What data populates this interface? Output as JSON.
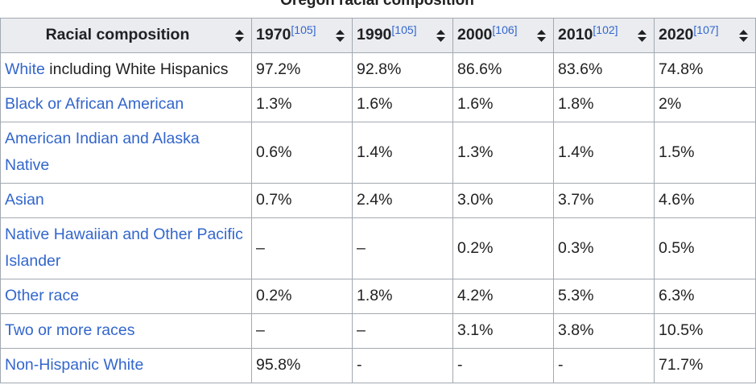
{
  "caption": "Oregon racial composition",
  "header": {
    "label": "Racial composition",
    "columns": [
      {
        "year": "1970",
        "ref": "[105]"
      },
      {
        "year": "1990",
        "ref": "[105]"
      },
      {
        "year": "2000",
        "ref": "[106]"
      },
      {
        "year": "2010",
        "ref": "[102]"
      },
      {
        "year": "2020",
        "ref": "[107]"
      }
    ]
  },
  "rows": [
    {
      "link": "White",
      "text": "including White Hispanics",
      "values": [
        "97.2%",
        "92.8%",
        "86.6%",
        "83.6%",
        "74.8%"
      ]
    },
    {
      "link": "Black or African American",
      "values": [
        "1.3%",
        "1.6%",
        "1.6%",
        "1.8%",
        "2%"
      ]
    },
    {
      "link": "American Indian and Alaska Native",
      "values": [
        "0.6%",
        "1.4%",
        "1.3%",
        "1.4%",
        "1.5%"
      ]
    },
    {
      "link": "Asian",
      "values": [
        "0.7%",
        "2.4%",
        "3.0%",
        "3.7%",
        "4.6%"
      ]
    },
    {
      "link": "Native Hawaiian and Other Pacific Islander",
      "values": [
        "–",
        "–",
        "0.2%",
        "0.3%",
        "0.5%"
      ]
    },
    {
      "link": "Other race",
      "values": [
        "0.2%",
        "1.8%",
        "4.2%",
        "5.3%",
        "6.3%"
      ]
    },
    {
      "link": "Two or more races",
      "values": [
        "–",
        "–",
        "3.1%",
        "3.8%",
        "10.5%"
      ]
    },
    {
      "link": "Non-Hispanic White",
      "values": [
        "95.8%",
        "-",
        "-",
        "-",
        "71.7%"
      ]
    }
  ]
}
